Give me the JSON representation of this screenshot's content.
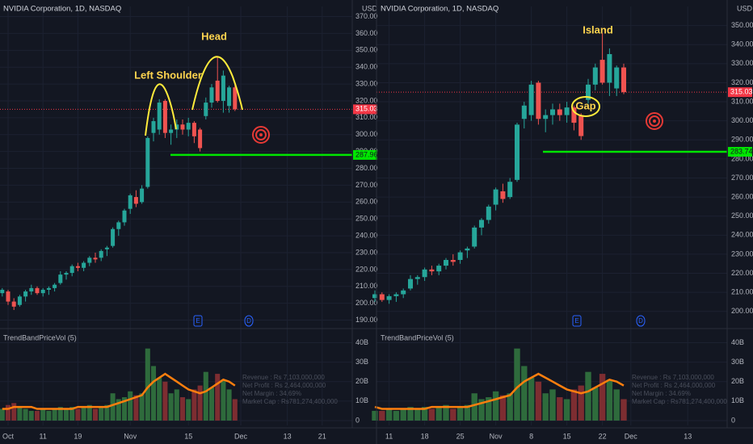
{
  "style": {
    "up": "#26a69a",
    "down": "#ef5350",
    "volume_up": "#2e6b3c",
    "volume_down": "#7d2d31",
    "trend": "#ff7f0e",
    "support": "#00e600",
    "last_price": "#f23645",
    "annotation": "#ffd54f"
  },
  "panels": [
    {
      "title": "NVIDIA Corporation, 1D, NASDAQ",
      "currency": "USD",
      "ylim": [
        185,
        376
      ],
      "yticks": [
        {
          "value": 190,
          "label": "190.00"
        },
        {
          "value": 200,
          "label": "200.00"
        },
        {
          "value": 210,
          "label": "210.00"
        },
        {
          "value": 220,
          "label": "220.00"
        },
        {
          "value": 230,
          "label": "230.00"
        },
        {
          "value": 240,
          "label": "240.00"
        },
        {
          "value": 250,
          "label": "250.00"
        },
        {
          "value": 260,
          "label": "260.00"
        },
        {
          "value": 270,
          "label": "270.00"
        },
        {
          "value": 280,
          "label": "280.00"
        },
        {
          "value": 290,
          "label": "290.00"
        },
        {
          "value": 300,
          "label": "300.00"
        },
        {
          "value": 310,
          "label": "310.00"
        },
        {
          "value": 320,
          "label": "320.00"
        },
        {
          "value": 330,
          "label": "330.00"
        },
        {
          "value": 340,
          "label": "340.00"
        },
        {
          "value": 350,
          "label": "350.00"
        },
        {
          "value": 360,
          "label": "360.00"
        },
        {
          "value": 370,
          "label": "370.00"
        }
      ],
      "xticks": [
        "Oct",
        "11",
        "19",
        "Nov",
        "15",
        "Dec",
        "13",
        "21"
      ],
      "last_price": {
        "value": 315.03,
        "label": "315.03"
      },
      "support": {
        "value": 287.96,
        "label": "287.96"
      },
      "annotations": [
        "Left Shoulder",
        "Head"
      ],
      "events": [
        "E",
        "D"
      ],
      "candles": {
        "open": [
          206,
          207,
          201,
          199,
          204,
          207,
          209,
          206,
          208,
          209,
          212,
          217,
          218,
          222,
          221,
          224,
          227,
          227,
          232,
          234,
          244,
          248,
          256,
          263,
          260,
          269,
          301,
          303,
          320,
          301,
          303,
          306,
          303,
          307,
          303,
          311,
          319,
          332,
          320,
          317,
          328
        ],
        "high": [
          209,
          208,
          203,
          205,
          208,
          211,
          210,
          209,
          210,
          212,
          219,
          219,
          223,
          224,
          225,
          228,
          230,
          232,
          234,
          245,
          249,
          256,
          265,
          267,
          270,
          299,
          310,
          321,
          321,
          306,
          309,
          309,
          310,
          308,
          304,
          322,
          330,
          346,
          338,
          329,
          330
        ],
        "low": [
          204,
          199,
          196,
          198,
          201,
          205,
          205,
          204,
          205,
          207,
          211,
          214,
          216,
          219,
          219,
          222,
          224,
          225,
          228,
          233,
          240,
          246,
          253,
          257,
          259,
          268,
          296,
          300,
          298,
          294,
          298,
          300,
          299,
          295,
          290,
          309,
          316,
          319,
          313,
          313,
          314
        ],
        "close": [
          208,
          201,
          198,
          204,
          207,
          209,
          206,
          208,
          209,
          211,
          217,
          218,
          222,
          221,
          224,
          227,
          226,
          231,
          233,
          244,
          248,
          255,
          264,
          259,
          268,
          298,
          308,
          319,
          301,
          303,
          306,
          303,
          307,
          299,
          292,
          319,
          328,
          320,
          335,
          328,
          315.03
        ]
      },
      "indicator": {
        "name": "TrendBandPriceVol (5)",
        "ylim": [
          0,
          46
        ],
        "yticks": [
          {
            "value": 0,
            "label": "0"
          },
          {
            "value": 10,
            "label": "10B"
          },
          {
            "value": 20,
            "label": "20B"
          },
          {
            "value": 30,
            "label": "30B"
          },
          {
            "value": 40,
            "label": "40B"
          }
        ],
        "volume": [
          6,
          8,
          9,
          7,
          6,
          5,
          5,
          6,
          5,
          6,
          7,
          6,
          7,
          6,
          7,
          8,
          6,
          7,
          8,
          14,
          11,
          12,
          15,
          13,
          14,
          37,
          28,
          22,
          20,
          14,
          16,
          12,
          11,
          16,
          18,
          25,
          17,
          24,
          21,
          16,
          11
        ],
        "trend": [
          6,
          6,
          7,
          7,
          7,
          7,
          6,
          6,
          6,
          6,
          6,
          6,
          6,
          7,
          7,
          7,
          7,
          7,
          7,
          8,
          9,
          10,
          11,
          12,
          13,
          17,
          20,
          22,
          24,
          22,
          20,
          18,
          16,
          15,
          14,
          15,
          17,
          19,
          21,
          20,
          18
        ],
        "stats": [
          "Revenue : Rs 7,103,000,000",
          "Net Profit : Rs 2,464,000,000",
          "Net Margin : 34.69%",
          "Market Cap : Rs781,274,400,000"
        ]
      }
    },
    {
      "title": "NVIDIA Corporation, 1D, NASDAQ",
      "currency": "USD",
      "ylim": [
        191,
        360
      ],
      "yticks": [
        {
          "value": 200,
          "label": "200.00"
        },
        {
          "value": 210,
          "label": "210.00"
        },
        {
          "value": 220,
          "label": "220.00"
        },
        {
          "value": 230,
          "label": "230.00"
        },
        {
          "value": 240,
          "label": "240.00"
        },
        {
          "value": 250,
          "label": "250.00"
        },
        {
          "value": 260,
          "label": "260.00"
        },
        {
          "value": 270,
          "label": "270.00"
        },
        {
          "value": 280,
          "label": "280.00"
        },
        {
          "value": 290,
          "label": "290.00"
        },
        {
          "value": 300,
          "label": "300.00"
        },
        {
          "value": 310,
          "label": "310.00"
        },
        {
          "value": 320,
          "label": "320.00"
        },
        {
          "value": 330,
          "label": "330.00"
        },
        {
          "value": 340,
          "label": "340.00"
        },
        {
          "value": 350,
          "label": "350.00"
        }
      ],
      "xticks": [
        "11",
        "18",
        "25",
        "Nov",
        "8",
        "15",
        "22",
        "Dec",
        "13"
      ],
      "last_price": {
        "value": 315.03,
        "label": "315.03"
      },
      "support": {
        "value": 283.74,
        "label": "283.74"
      },
      "annotations": [
        "Island",
        "Gap"
      ],
      "events": [
        "E",
        "D"
      ],
      "candles": {
        "open": [
          207,
          209,
          206,
          208,
          209,
          212,
          217,
          218,
          222,
          221,
          224,
          227,
          227,
          232,
          234,
          244,
          248,
          256,
          263,
          260,
          269,
          301,
          303,
          320,
          301,
          303,
          306,
          303,
          307,
          303,
          311,
          319,
          332,
          320,
          317,
          328
        ],
        "high": [
          211,
          210,
          209,
          210,
          212,
          219,
          219,
          223,
          224,
          225,
          228,
          230,
          232,
          234,
          245,
          249,
          256,
          265,
          267,
          270,
          299,
          310,
          321,
          321,
          306,
          309,
          309,
          310,
          308,
          304,
          322,
          330,
          346,
          338,
          329,
          330
        ],
        "low": [
          205,
          205,
          204,
          205,
          207,
          211,
          214,
          216,
          219,
          219,
          222,
          224,
          225,
          228,
          233,
          240,
          246,
          253,
          257,
          259,
          268,
          296,
          300,
          298,
          294,
          298,
          300,
          299,
          295,
          290,
          309,
          316,
          319,
          313,
          313,
          314
        ],
        "close": [
          209,
          206,
          208,
          209,
          211,
          217,
          218,
          222,
          221,
          224,
          227,
          226,
          231,
          233,
          244,
          248,
          255,
          264,
          259,
          268,
          298,
          308,
          319,
          301,
          303,
          306,
          303,
          307,
          299,
          292,
          319,
          328,
          320,
          335,
          328,
          315.03
        ]
      },
      "indicator": {
        "name": "TrendBandPriceVol (5)",
        "ylim": [
          0,
          46
        ],
        "yticks": [
          {
            "value": 0,
            "label": "0"
          },
          {
            "value": 10,
            "label": "10B"
          },
          {
            "value": 20,
            "label": "20B"
          },
          {
            "value": 30,
            "label": "30B"
          },
          {
            "value": 40,
            "label": "40B"
          }
        ],
        "volume": [
          5,
          5,
          6,
          5,
          6,
          7,
          6,
          7,
          6,
          7,
          8,
          6,
          7,
          8,
          14,
          11,
          12,
          15,
          13,
          14,
          37,
          28,
          22,
          20,
          14,
          16,
          12,
          11,
          16,
          18,
          25,
          17,
          24,
          21,
          16,
          11
        ],
        "trend": [
          7,
          6,
          6,
          6,
          6,
          6,
          6,
          6,
          7,
          7,
          7,
          7,
          7,
          7,
          8,
          9,
          10,
          11,
          12,
          13,
          17,
          20,
          22,
          24,
          22,
          20,
          18,
          16,
          15,
          14,
          15,
          17,
          19,
          21,
          20,
          18
        ],
        "stats": [
          "Revenue : Rs 7,103,000,000",
          "Net Profit : Rs 2,464,000,000",
          "Net Margin : 34.69%",
          "Market Cap : Rs781,274,400,000"
        ]
      }
    }
  ]
}
